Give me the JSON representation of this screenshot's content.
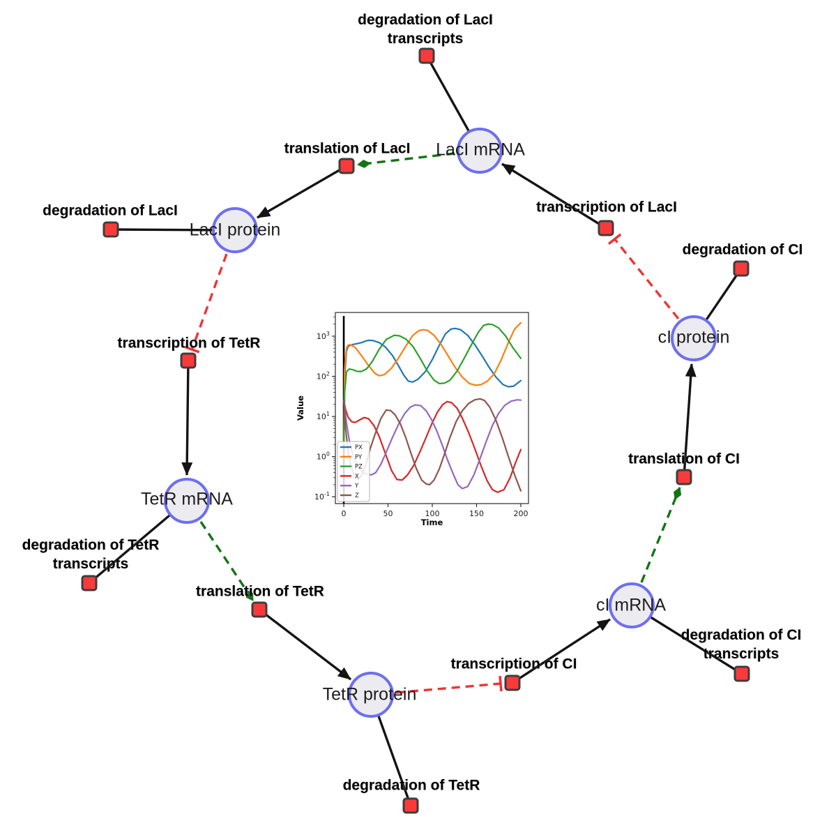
{
  "diagram": {
    "colors": {
      "species_fill": "#ececf0",
      "species_border": "#6e6ef2",
      "reaction_fill": "#fa3a3a",
      "reaction_border": "#3d3d3d",
      "edge_black": "#141414",
      "edge_modifier_green": "#137413",
      "edge_inhibition_red": "#ee3434"
    },
    "species": {
      "laci_mrna": {
        "label": "LacI mRNA"
      },
      "laci_protein": {
        "label": "LacI protein"
      },
      "tetr_mrna": {
        "label": "TetR mRNA"
      },
      "tetr_protein": {
        "label": "TetR protein"
      },
      "ci_mrna": {
        "label": "cI mRNA"
      },
      "ci_protein": {
        "label": "cI protein"
      }
    },
    "reactions": {
      "deg_laci_tx": {
        "label": "degradation of LacI transcripts"
      },
      "transl_laci": {
        "label": "translation of LacI"
      },
      "deg_laci": {
        "label": "degradation of LacI"
      },
      "txn_laci": {
        "label": "transcription of LacI"
      },
      "deg_ci": {
        "label": "degradation of CI"
      },
      "txn_tetr": {
        "label": "transcription of TetR"
      },
      "transl_ci": {
        "label": "translation of CI"
      },
      "deg_tetr_tx": {
        "label": "degradation of TetR transcripts"
      },
      "transl_tetr": {
        "label": "translation of TetR"
      },
      "deg_tetr": {
        "label": "degradation of TetR"
      },
      "txn_ci": {
        "label": "transcription of CI"
      },
      "deg_ci_tx": {
        "label": "degradation of CI transcripts"
      }
    }
  },
  "chart_data": {
    "type": "line",
    "title": "",
    "xlabel": "Time",
    "ylabel": "Value",
    "y_scale": "log",
    "xlim": [
      -9.5,
      208.7
    ],
    "log_ylim": [
      -1.17,
      3.59
    ],
    "x_ticks": [
      0,
      50,
      100,
      150,
      200
    ],
    "y_tick_exponents": [
      -1,
      0,
      1,
      2,
      3
    ],
    "grid": false,
    "legend_position": "lower left",
    "legend": [
      "PX",
      "PY",
      "PZ",
      "X",
      "Y",
      "Z"
    ],
    "annotations": [
      {
        "type": "vline",
        "x": 0,
        "color": "#000000"
      }
    ],
    "series": [
      {
        "name": "PX",
        "color": "#1f77b4",
        "x": [
          0,
          1,
          3,
          5,
          10,
          15,
          20,
          25,
          28,
          33,
          40,
          47,
          55,
          62,
          68,
          73,
          78,
          84,
          92,
          100,
          108,
          115,
          121,
          126,
          132,
          140,
          148,
          156,
          164,
          172,
          180,
          186,
          192,
          200
        ],
        "y": [
          2,
          100,
          420,
          560,
          620,
          650,
          690,
          760,
          790,
          780,
          690,
          540,
          330,
          180,
          105,
          76,
          72,
          85,
          130,
          260,
          600,
          1150,
          1500,
          1560,
          1450,
          1050,
          620,
          330,
          170,
          95,
          62,
          55,
          57,
          78
        ]
      },
      {
        "name": "PY",
        "color": "#ff7f0e",
        "x": [
          0,
          1,
          3,
          5,
          8,
          13,
          20,
          28,
          35,
          40,
          46,
          54,
          62,
          70,
          78,
          85,
          90,
          95,
          102,
          110,
          118,
          126,
          134,
          142,
          149,
          155,
          162,
          170,
          178,
          186,
          193,
          200
        ],
        "y": [
          2,
          150,
          500,
          600,
          610,
          520,
          330,
          185,
          120,
          103,
          110,
          160,
          290,
          560,
          1050,
          1380,
          1450,
          1380,
          1050,
          620,
          320,
          165,
          95,
          66,
          60,
          62,
          75,
          115,
          260,
          700,
          1500,
          2150
        ]
      },
      {
        "name": "PZ",
        "color": "#2ca02c",
        "x": [
          0,
          1,
          3,
          6,
          10,
          15,
          20,
          26,
          32,
          40,
          48,
          57,
          63,
          70,
          78,
          86,
          94,
          102,
          108,
          114,
          120,
          128,
          136,
          144,
          152,
          158,
          163,
          168,
          175,
          183,
          191,
          200
        ],
        "y": [
          2,
          40,
          130,
          152,
          147,
          133,
          132,
          155,
          230,
          470,
          830,
          1050,
          1020,
          850,
          560,
          290,
          140,
          80,
          66,
          68,
          80,
          135,
          280,
          600,
          1250,
          1850,
          2000,
          1950,
          1600,
          1000,
          520,
          280
        ]
      },
      {
        "name": "X",
        "color": "#d62728",
        "x": [
          0,
          2,
          5,
          9,
          13,
          18,
          23,
          28,
          34,
          40,
          47,
          54,
          60,
          66,
          72,
          79,
          86,
          93,
          100,
          106,
          112,
          117,
          122,
          128,
          134,
          141,
          148,
          155,
          162,
          168,
          174,
          181,
          188,
          194,
          200
        ],
        "y": [
          25,
          15,
          9.5,
          7.4,
          7.1,
          8.2,
          9.4,
          8.8,
          6,
          3.2,
          1.2,
          0.45,
          0.27,
          0.26,
          0.35,
          0.6,
          1.3,
          3,
          7,
          13,
          20,
          23.5,
          22,
          16,
          9,
          4,
          1.6,
          0.6,
          0.25,
          0.15,
          0.13,
          0.15,
          0.3,
          0.7,
          1.5
        ]
      },
      {
        "name": "Y",
        "color": "#9467bd",
        "x": [
          0,
          3,
          7,
          12,
          17,
          22,
          27,
          31,
          36,
          42,
          48,
          55,
          62,
          69,
          75,
          81,
          87,
          93,
          99,
          105,
          111,
          117,
          123,
          129,
          134,
          140,
          147,
          154,
          161,
          168,
          175,
          182,
          189,
          196,
          200
        ],
        "y": [
          25,
          7,
          2,
          0.85,
          0.52,
          0.4,
          0.36,
          0.35,
          0.4,
          0.65,
          1.3,
          3,
          6.5,
          12,
          17,
          19.5,
          18.5,
          14,
          8.5,
          4.4,
          2,
          0.85,
          0.4,
          0.2,
          0.16,
          0.18,
          0.35,
          0.9,
          2.4,
          6,
          12,
          19,
          24,
          26,
          25.5
        ]
      },
      {
        "name": "Z",
        "color": "#8c564b",
        "x": [
          0,
          2,
          5,
          8,
          12,
          16,
          20,
          25,
          30,
          36,
          42,
          48,
          53,
          58,
          64,
          70,
          76,
          82,
          88,
          93,
          97,
          102,
          108,
          114,
          120,
          127,
          134,
          141,
          148,
          154,
          159,
          165,
          172,
          179,
          186,
          193,
          200
        ],
        "y": [
          25,
          5,
          1.3,
          0.6,
          0.33,
          0.27,
          0.33,
          0.65,
          1.6,
          4,
          9,
          14.5,
          14,
          11,
          6.5,
          3,
          1.2,
          0.5,
          0.26,
          0.21,
          0.2,
          0.26,
          0.5,
          1.2,
          3,
          7.5,
          14,
          21,
          26,
          27.5,
          25,
          17,
          8,
          3,
          1,
          0.35,
          0.14
        ]
      }
    ]
  }
}
